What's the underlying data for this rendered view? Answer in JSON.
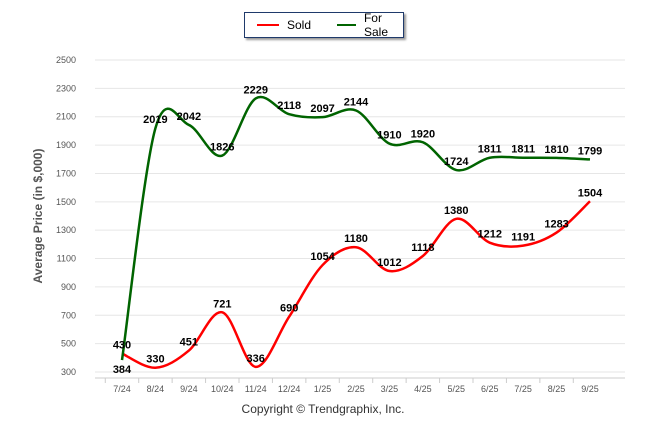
{
  "chart_data": {
    "type": "line",
    "title": "",
    "xlabel": "",
    "ylabel": "Average Price (in $,000)",
    "categories": [
      "7/24",
      "8/24",
      "9/24",
      "10/24",
      "11/24",
      "12/24",
      "1/25",
      "2/25",
      "3/25",
      "4/25",
      "5/25",
      "6/25",
      "7/25",
      "8/25",
      "9/25"
    ],
    "series": [
      {
        "name": "Sold",
        "color": "#ff0000",
        "values": [
          430,
          330,
          451,
          721,
          336,
          690,
          1054,
          1180,
          1012,
          1118,
          1380,
          1212,
          1191,
          1283,
          1504
        ]
      },
      {
        "name": "For Sale",
        "color": "#006400",
        "values": [
          384,
          2019,
          2042,
          1826,
          2229,
          2118,
          2097,
          2144,
          1910,
          1920,
          1724,
          1811,
          1811,
          1810,
          1799
        ]
      }
    ],
    "ylim": [
      300,
      2500
    ],
    "yticks": [
      300,
      500,
      700,
      900,
      1100,
      1300,
      1500,
      1700,
      1900,
      2100,
      2300,
      2500
    ],
    "grid": true,
    "legend": "top-center"
  },
  "legend": {
    "sold": "Sold",
    "for_sale": "For Sale"
  },
  "copyright": "Copyright © Trendgraphix, Inc."
}
